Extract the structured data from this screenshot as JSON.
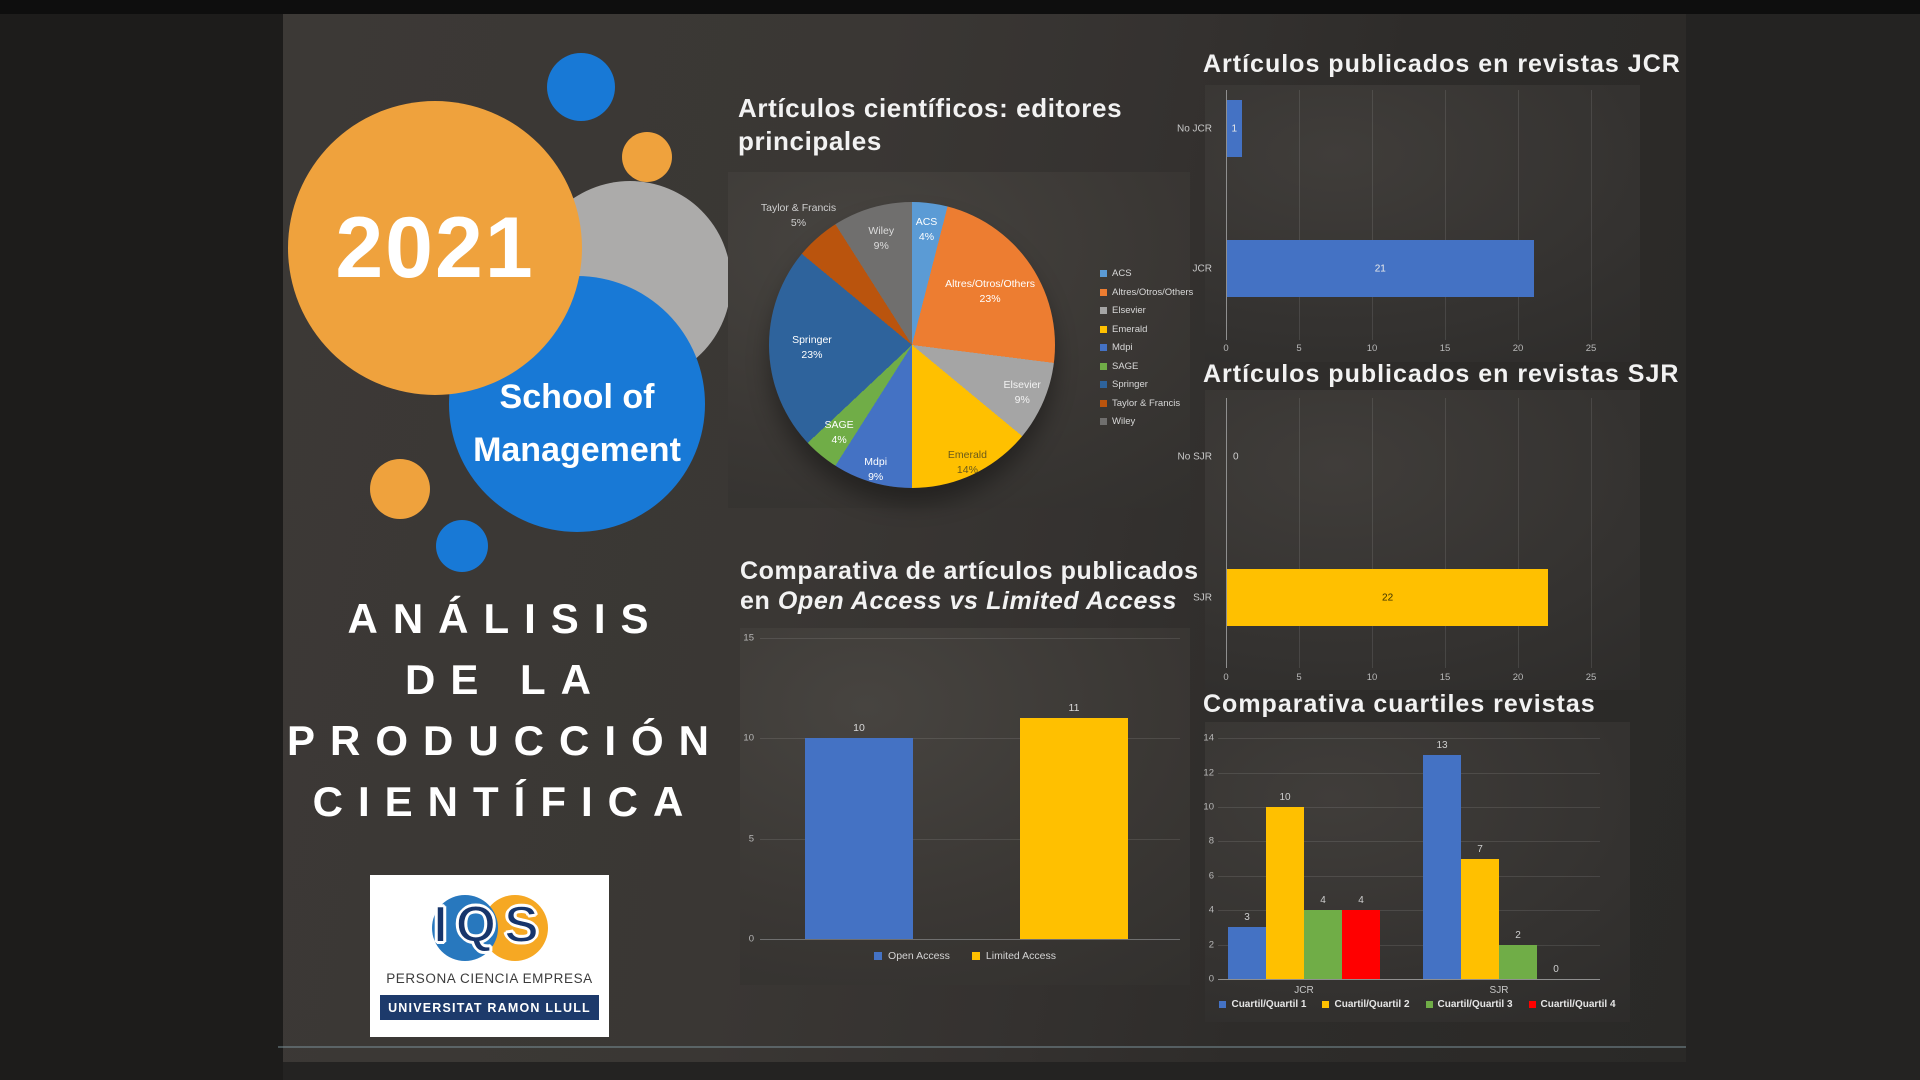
{
  "slide": {
    "year": "2021",
    "subtitle_lines": [
      "School of",
      "Management"
    ],
    "headline_lines": [
      "ANÁLISIS",
      "DE LA",
      "PRODUCCIÓN",
      "CIENTÍFICA"
    ],
    "logo": {
      "acronym": "IQS",
      "tagline": "PERSONA CIENCIA EMPRESA",
      "university": "UNIVERSITAT RAMON LLULL"
    }
  },
  "colors": {
    "accent_blue": "#4472C4",
    "accent_yellow": "#FFC000",
    "accent_green": "#70AD47",
    "accent_red": "#FF0000",
    "circle_orange": "#EFA23D",
    "circle_blue": "#1879D6",
    "circle_gray": "#ACABAA"
  },
  "chart_data": [
    {
      "id": "editors_pie",
      "type": "pie",
      "title_lines": [
        "Artículos científicos: editores",
        "principales"
      ],
      "labels": [
        "ACS",
        "Altres/Otros/Others",
        "Elsevier",
        "Emerald",
        "Mdpi",
        "SAGE",
        "Springer",
        "Taylor & Francis",
        "Wiley"
      ],
      "values_pct": [
        4,
        23,
        9,
        14,
        9,
        4,
        23,
        5,
        9
      ],
      "colors": [
        "#5B9BD5",
        "#ED7D31",
        "#A5A5A5",
        "#FFC000",
        "#4472C4",
        "#70AD47",
        "#2E639C",
        "#BA540D",
        "#706F6E"
      ],
      "label_radius": [
        0.81,
        0.66,
        0.84,
        0.91,
        0.91,
        0.8,
        0.7,
        1.2,
        0.77
      ],
      "label_colors": [
        "#ffffff",
        "#ffffff",
        "#f2f2f2",
        "#6b5a1a",
        "#ffffff",
        "#ffffff",
        "#ffffff",
        "#cfcfcf",
        "#dcdcdc"
      ],
      "legend_position": "right"
    },
    {
      "id": "open_access_bar",
      "type": "bar",
      "title_lines": [
        "Comparativa de artículos publicados"
      ],
      "title_line2_prefix": "en ",
      "title_line2_italic": "Open Access vs Limited Access",
      "categories": [
        "Open Access",
        "Limited Access"
      ],
      "values": [
        10,
        11
      ],
      "colors": [
        "#4472C4",
        "#FFC000"
      ],
      "ylim": [
        0,
        15
      ],
      "yticks": [
        0,
        5,
        10,
        15
      ],
      "grid": true,
      "legend_position": "bottom"
    },
    {
      "id": "jcr_hbar",
      "type": "hbar",
      "title": "Artículos publicados en revistas JCR",
      "categories": [
        "No JCR",
        "JCR"
      ],
      "values": [
        1,
        21
      ],
      "bar_color": "#4472C4",
      "xlim": [
        0,
        25
      ],
      "xticks": [
        0,
        5,
        10,
        15,
        20,
        25
      ],
      "value_label_colors": [
        "#eaeaea",
        "#eaeaea"
      ],
      "grid": true
    },
    {
      "id": "sjr_hbar",
      "type": "hbar",
      "title": "Artículos publicados en revistas SJR",
      "categories": [
        "No SJR",
        "SJR"
      ],
      "values": [
        0,
        22
      ],
      "bar_color": "#FFC000",
      "xlim": [
        0,
        25
      ],
      "xticks": [
        0,
        5,
        10,
        15,
        20,
        25
      ],
      "value_label_colors": [
        "#cfcfcf",
        "#3c3200"
      ],
      "grid": true
    },
    {
      "id": "quartiles_grouped",
      "type": "bar",
      "title": "Comparativa cuartiles revistas",
      "categories": [
        "JCR",
        "SJR"
      ],
      "series": [
        {
          "name": "Cuartil/Quartil 1",
          "color": "#4472C4",
          "values": [
            3,
            13
          ]
        },
        {
          "name": "Cuartil/Quartil 2",
          "color": "#FFC000",
          "values": [
            10,
            7
          ]
        },
        {
          "name": "Cuartil/Quartil 3",
          "color": "#70AD47",
          "values": [
            4,
            2
          ]
        },
        {
          "name": "Cuartil/Quartil 4",
          "color": "#FF0000",
          "values": [
            4,
            0
          ]
        }
      ],
      "ylim": [
        0,
        14
      ],
      "yticks": [
        0,
        2,
        4,
        6,
        8,
        10,
        12,
        14
      ],
      "legend_position": "bottom",
      "grid": true
    }
  ]
}
